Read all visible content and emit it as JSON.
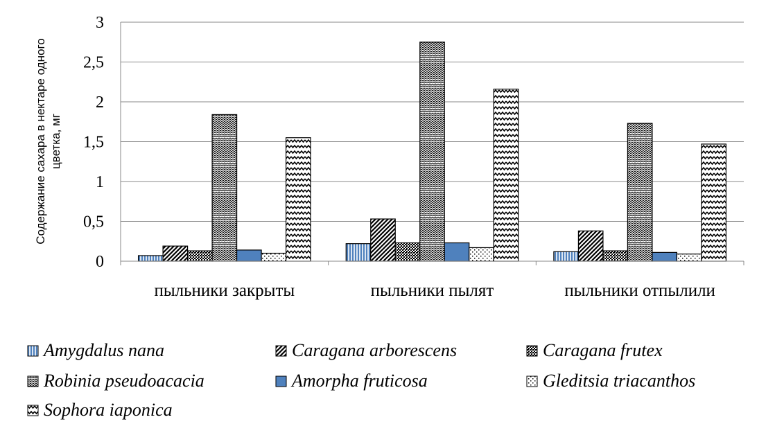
{
  "chart_data": {
    "type": "bar",
    "categories": [
      "пыльники закрыты",
      "пыльники пылят",
      "пыльники отпылили"
    ],
    "ylabel_lines": [
      "Содержание сахара в нектаре одного",
      "цветка, мг"
    ],
    "ylim": [
      0,
      3
    ],
    "yticks": [
      0,
      0.5,
      1,
      1.5,
      2,
      2.5,
      3
    ],
    "ytick_labels": [
      "0",
      "0,5",
      "1",
      "1,5",
      "2",
      "2,5",
      "3"
    ],
    "grid": true,
    "legend": "bottom",
    "series": [
      {
        "name": "Amygdalus nana",
        "values": [
          0.07,
          0.22,
          0.12
        ],
        "pattern": "vlines",
        "color": "#4f81bd"
      },
      {
        "name": "Caragana arborescens",
        "values": [
          0.19,
          0.53,
          0.38
        ],
        "pattern": "diag-dense",
        "color": "#000000"
      },
      {
        "name": "Caragana frutex",
        "values": [
          0.13,
          0.23,
          0.13
        ],
        "pattern": "dots-dense",
        "color": "#000000"
      },
      {
        "name": "Robinia pseudoacacia",
        "values": [
          1.84,
          2.75,
          1.73
        ],
        "pattern": "zigzag-small",
        "color": "#000000"
      },
      {
        "name": "Amorpha fruticosa",
        "values": [
          0.14,
          0.23,
          0.11
        ],
        "pattern": "solid",
        "color": "#4f81bd"
      },
      {
        "name": "Gleditsia triacanthos",
        "values": [
          0.1,
          0.17,
          0.09
        ],
        "pattern": "dots-sparse",
        "color": "#000000"
      },
      {
        "name": "Sophora iaponica",
        "values": [
          1.55,
          2.16,
          1.47
        ],
        "pattern": "zigzag",
        "color": "#000000"
      }
    ]
  }
}
